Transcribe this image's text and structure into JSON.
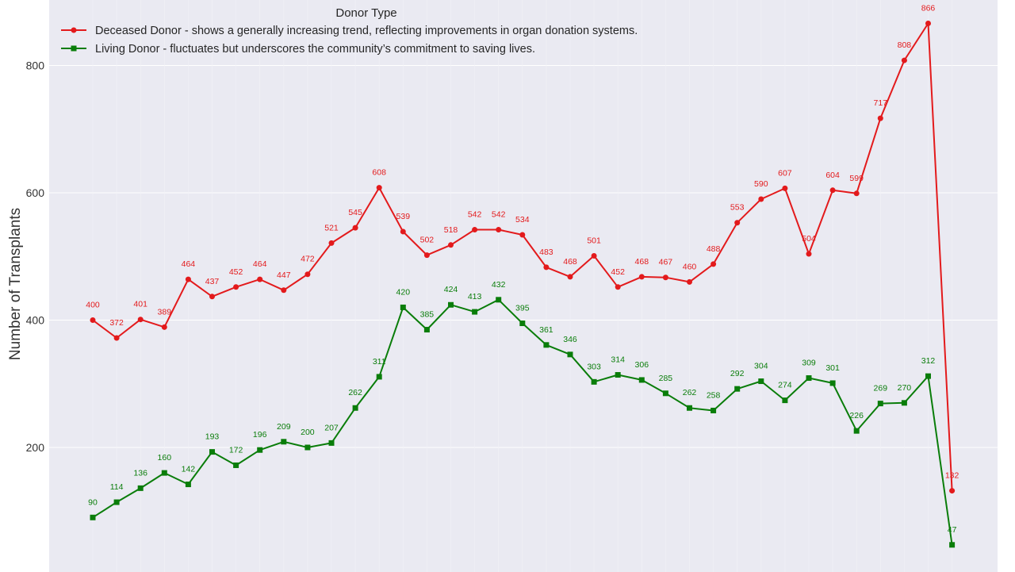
{
  "chart_data": {
    "type": "line",
    "title": "",
    "xlabel": "",
    "ylabel": "Number of Transplants",
    "ylim": [
      0,
      880
    ],
    "yticks": [
      200,
      400,
      600,
      800
    ],
    "grid": true,
    "legend": {
      "title": "Donor Type",
      "placement": "top-left"
    },
    "series": [
      {
        "name": "Deceased Donor - shows a generally increasing trend, reflecting improvements in organ donation systems.",
        "color": "#e31a1c",
        "marker": "circle",
        "values": [
          400,
          372,
          401,
          389,
          464,
          437,
          452,
          464,
          447,
          472,
          521,
          545,
          608,
          539,
          502,
          518,
          542,
          542,
          534,
          483,
          468,
          501,
          452,
          468,
          467,
          460,
          488,
          553,
          590,
          607,
          504,
          604,
          599,
          717,
          808,
          866,
          132
        ]
      },
      {
        "name": "Living Donor - fluctuates but underscores the community’s commitment to saving lives.",
        "color": "#0a7d0a",
        "marker": "square",
        "values": [
          90,
          114,
          136,
          160,
          142,
          193,
          172,
          196,
          209,
          200,
          207,
          262,
          311,
          420,
          385,
          424,
          413,
          432,
          395,
          361,
          346,
          303,
          314,
          306,
          285,
          262,
          258,
          292,
          304,
          274,
          309,
          301,
          226,
          269,
          270,
          312,
          47
        ]
      }
    ]
  }
}
